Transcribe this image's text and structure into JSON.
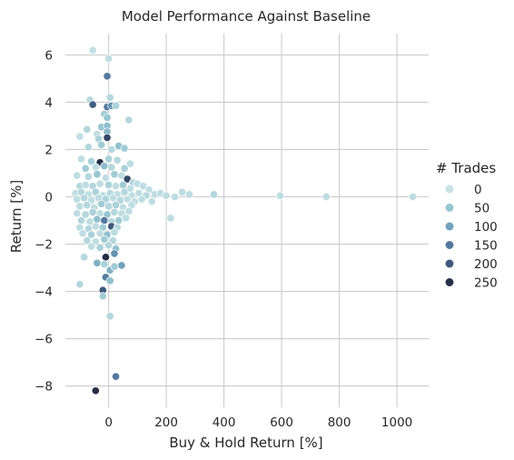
{
  "chart_data": {
    "type": "scatter",
    "title": "Model Performance Against Baseline",
    "xlabel": "Buy & Hold Return [%]",
    "ylabel": "Return [%]",
    "xlim": [
      -150,
      1110
    ],
    "ylim": [
      -8.9,
      6.9
    ],
    "xticks": [
      0,
      200,
      400,
      600,
      800,
      1000
    ],
    "yticks": [
      -8,
      -6,
      -4,
      -2,
      0,
      2,
      4,
      6
    ],
    "grid": true,
    "legend": {
      "title": "# Trades",
      "position": "right",
      "entries": [
        {
          "label": "0",
          "value": 0
        },
        {
          "label": "50",
          "value": 50
        },
        {
          "label": "100",
          "value": 100
        },
        {
          "label": "150",
          "value": 150
        },
        {
          "label": "200",
          "value": 200
        },
        {
          "label": "250",
          "value": 250
        }
      ]
    },
    "colormap": [
      "#c8e3e6",
      "#96c6d2",
      "#72a2bc",
      "#55799e",
      "#3f587e",
      "#262e48"
    ],
    "points": [
      {
        "x": -55,
        "y": 6.2,
        "trades": 5
      },
      {
        "x": 0,
        "y": 5.85,
        "trades": 10
      },
      {
        "x": -5,
        "y": 5.1,
        "trades": 150
      },
      {
        "x": -65,
        "y": 4.1,
        "trades": 15
      },
      {
        "x": -55,
        "y": 3.9,
        "trades": 190
      },
      {
        "x": 5,
        "y": 4.2,
        "trades": 20
      },
      {
        "x": -5,
        "y": 3.8,
        "trades": 150
      },
      {
        "x": 10,
        "y": 3.85,
        "trades": 120
      },
      {
        "x": 25,
        "y": 3.85,
        "trades": 30
      },
      {
        "x": -15,
        "y": 3.5,
        "trades": 40
      },
      {
        "x": 70,
        "y": 3.25,
        "trades": 20
      },
      {
        "x": -5,
        "y": 3.35,
        "trades": 50
      },
      {
        "x": -75,
        "y": 2.85,
        "trades": 20
      },
      {
        "x": -25,
        "y": 2.95,
        "trades": 50
      },
      {
        "x": -5,
        "y": 3.0,
        "trades": 60
      },
      {
        "x": -100,
        "y": 2.55,
        "trades": 10
      },
      {
        "x": -40,
        "y": 2.65,
        "trades": 10
      },
      {
        "x": -5,
        "y": 2.75,
        "trades": 70
      },
      {
        "x": -5,
        "y": 2.5,
        "trades": 220
      },
      {
        "x": -35,
        "y": 2.45,
        "trades": 30
      },
      {
        "x": -70,
        "y": 2.1,
        "trades": 20
      },
      {
        "x": -25,
        "y": 2.2,
        "trades": 40
      },
      {
        "x": 10,
        "y": 2.0,
        "trades": 20
      },
      {
        "x": 35,
        "y": 2.15,
        "trades": 60
      },
      {
        "x": 55,
        "y": 2.05,
        "trades": 40
      },
      {
        "x": -95,
        "y": 1.6,
        "trades": 10
      },
      {
        "x": -60,
        "y": 1.5,
        "trades": 30
      },
      {
        "x": -30,
        "y": 1.45,
        "trades": 250
      },
      {
        "x": 0,
        "y": 1.6,
        "trades": 30
      },
      {
        "x": 30,
        "y": 1.55,
        "trades": 20
      },
      {
        "x": 75,
        "y": 1.4,
        "trades": 10
      },
      {
        "x": -80,
        "y": 1.2,
        "trades": 40
      },
      {
        "x": -45,
        "y": 1.25,
        "trades": 10
      },
      {
        "x": -15,
        "y": 1.3,
        "trades": 60
      },
      {
        "x": 10,
        "y": 1.25,
        "trades": 20
      },
      {
        "x": 55,
        "y": 1.2,
        "trades": 30
      },
      {
        "x": -110,
        "y": 0.9,
        "trades": 10
      },
      {
        "x": -70,
        "y": 0.85,
        "trades": 20
      },
      {
        "x": -40,
        "y": 0.95,
        "trades": 50
      },
      {
        "x": -10,
        "y": 0.8,
        "trades": 10
      },
      {
        "x": 20,
        "y": 0.95,
        "trades": 40
      },
      {
        "x": 45,
        "y": 0.9,
        "trades": 10
      },
      {
        "x": 65,
        "y": 0.75,
        "trades": 220
      },
      {
        "x": 85,
        "y": 0.6,
        "trades": 20
      },
      {
        "x": 100,
        "y": 0.55,
        "trades": 10
      },
      {
        "x": -100,
        "y": 0.45,
        "trades": 20
      },
      {
        "x": -80,
        "y": 0.5,
        "trades": 10
      },
      {
        "x": -55,
        "y": 0.45,
        "trades": 20
      },
      {
        "x": -30,
        "y": 0.55,
        "trades": 10
      },
      {
        "x": 0,
        "y": 0.5,
        "trades": 30
      },
      {
        "x": 25,
        "y": 0.45,
        "trades": 10
      },
      {
        "x": 50,
        "y": 0.5,
        "trades": 40
      },
      {
        "x": 75,
        "y": 0.35,
        "trades": 10
      },
      {
        "x": 120,
        "y": 0.45,
        "trades": 10
      },
      {
        "x": 140,
        "y": 0.3,
        "trades": 10
      },
      {
        "x": -115,
        "y": 0.15,
        "trades": 10
      },
      {
        "x": -95,
        "y": 0.2,
        "trades": 20
      },
      {
        "x": -70,
        "y": 0.1,
        "trades": 10
      },
      {
        "x": -45,
        "y": 0.2,
        "trades": 30
      },
      {
        "x": -20,
        "y": 0.05,
        "trades": 10
      },
      {
        "x": 5,
        "y": 0.15,
        "trades": 20
      },
      {
        "x": 30,
        "y": 0.1,
        "trades": 10
      },
      {
        "x": 55,
        "y": 0.2,
        "trades": 20
      },
      {
        "x": 80,
        "y": 0.05,
        "trades": 10
      },
      {
        "x": 105,
        "y": 0.15,
        "trades": 10
      },
      {
        "x": 130,
        "y": 0.05,
        "trades": 20
      },
      {
        "x": 160,
        "y": 0.1,
        "trades": 10
      },
      {
        "x": 180,
        "y": 0.15,
        "trades": 10
      },
      {
        "x": 200,
        "y": 0.05,
        "trades": 10
      },
      {
        "x": 230,
        "y": 0.0,
        "trades": 10
      },
      {
        "x": 255,
        "y": 0.2,
        "trades": 10
      },
      {
        "x": 280,
        "y": 0.1,
        "trades": 10
      },
      {
        "x": 365,
        "y": 0.1,
        "trades": 20
      },
      {
        "x": 595,
        "y": 0.05,
        "trades": 10
      },
      {
        "x": 755,
        "y": 0.0,
        "trades": 10
      },
      {
        "x": 1055,
        "y": 0.0,
        "trades": 10
      },
      {
        "x": -110,
        "y": -0.1,
        "trades": 10
      },
      {
        "x": -85,
        "y": -0.05,
        "trades": 20
      },
      {
        "x": -60,
        "y": -0.15,
        "trades": 10
      },
      {
        "x": -35,
        "y": -0.05,
        "trades": 10
      },
      {
        "x": -10,
        "y": -0.1,
        "trades": 30
      },
      {
        "x": 15,
        "y": -0.05,
        "trades": 10
      },
      {
        "x": 40,
        "y": -0.15,
        "trades": 20
      },
      {
        "x": 65,
        "y": -0.1,
        "trades": 10
      },
      {
        "x": 90,
        "y": -0.2,
        "trades": 10
      },
      {
        "x": 115,
        "y": -0.1,
        "trades": 10
      },
      {
        "x": 150,
        "y": -0.2,
        "trades": 10
      },
      {
        "x": -100,
        "y": -0.4,
        "trades": 10
      },
      {
        "x": -75,
        "y": -0.35,
        "trades": 20
      },
      {
        "x": -50,
        "y": -0.45,
        "trades": 10
      },
      {
        "x": -25,
        "y": -0.3,
        "trades": 40
      },
      {
        "x": 0,
        "y": -0.4,
        "trades": 20
      },
      {
        "x": 25,
        "y": -0.35,
        "trades": 30
      },
      {
        "x": 50,
        "y": -0.45,
        "trades": 10
      },
      {
        "x": 80,
        "y": -0.35,
        "trades": 10
      },
      {
        "x": -110,
        "y": -0.7,
        "trades": 10
      },
      {
        "x": -80,
        "y": -0.75,
        "trades": 20
      },
      {
        "x": -55,
        "y": -0.65,
        "trades": 30
      },
      {
        "x": -30,
        "y": -0.7,
        "trades": 10
      },
      {
        "x": -5,
        "y": -0.75,
        "trades": 50
      },
      {
        "x": 20,
        "y": -0.65,
        "trades": 20
      },
      {
        "x": 45,
        "y": -0.7,
        "trades": 10
      },
      {
        "x": 70,
        "y": -0.6,
        "trades": 10
      },
      {
        "x": 215,
        "y": -0.9,
        "trades": 10
      },
      {
        "x": -95,
        "y": -1.0,
        "trades": 20
      },
      {
        "x": -65,
        "y": -1.05,
        "trades": 10
      },
      {
        "x": -40,
        "y": -0.95,
        "trades": 60
      },
      {
        "x": -15,
        "y": -1.0,
        "trades": 150
      },
      {
        "x": 10,
        "y": -1.05,
        "trades": 20
      },
      {
        "x": 35,
        "y": -1.0,
        "trades": 40
      },
      {
        "x": 60,
        "y": -0.9,
        "trades": 10
      },
      {
        "x": -100,
        "y": -1.3,
        "trades": 10
      },
      {
        "x": -70,
        "y": -1.35,
        "trades": 20
      },
      {
        "x": -45,
        "y": -1.25,
        "trades": 10
      },
      {
        "x": -20,
        "y": -1.3,
        "trades": 40
      },
      {
        "x": 10,
        "y": -1.25,
        "trades": 200
      },
      {
        "x": 30,
        "y": -1.3,
        "trades": 20
      },
      {
        "x": -90,
        "y": -1.55,
        "trades": 10
      },
      {
        "x": -60,
        "y": -1.6,
        "trades": 30
      },
      {
        "x": -30,
        "y": -1.55,
        "trades": 10
      },
      {
        "x": -5,
        "y": -1.6,
        "trades": 60
      },
      {
        "x": 20,
        "y": -1.5,
        "trades": 10
      },
      {
        "x": -75,
        "y": -1.85,
        "trades": 20
      },
      {
        "x": -45,
        "y": -1.9,
        "trades": 10
      },
      {
        "x": -15,
        "y": -1.8,
        "trades": 40
      },
      {
        "x": 15,
        "y": -1.85,
        "trades": 20
      },
      {
        "x": -60,
        "y": -2.1,
        "trades": 10
      },
      {
        "x": -30,
        "y": -2.15,
        "trades": 30
      },
      {
        "x": 0,
        "y": -2.05,
        "trades": 20
      },
      {
        "x": 25,
        "y": -2.2,
        "trades": 60
      },
      {
        "x": -85,
        "y": -2.55,
        "trades": 20
      },
      {
        "x": -10,
        "y": -2.55,
        "trades": 250
      },
      {
        "x": 20,
        "y": -2.4,
        "trades": 120
      },
      {
        "x": -40,
        "y": -2.8,
        "trades": 80
      },
      {
        "x": -15,
        "y": -2.85,
        "trades": 30
      },
      {
        "x": 45,
        "y": -2.9,
        "trades": 100
      },
      {
        "x": 5,
        "y": -3.1,
        "trades": 80
      },
      {
        "x": 20,
        "y": -2.95,
        "trades": 40
      },
      {
        "x": -10,
        "y": -3.4,
        "trades": 150
      },
      {
        "x": 5,
        "y": -3.55,
        "trades": 60
      },
      {
        "x": -100,
        "y": -3.7,
        "trades": 20
      },
      {
        "x": -20,
        "y": -3.95,
        "trades": 200
      },
      {
        "x": -20,
        "y": -4.2,
        "trades": 40
      },
      {
        "x": 5,
        "y": -5.05,
        "trades": 20
      },
      {
        "x": 25,
        "y": -7.6,
        "trades": 150
      },
      {
        "x": -45,
        "y": -8.2,
        "trades": 250
      }
    ]
  }
}
